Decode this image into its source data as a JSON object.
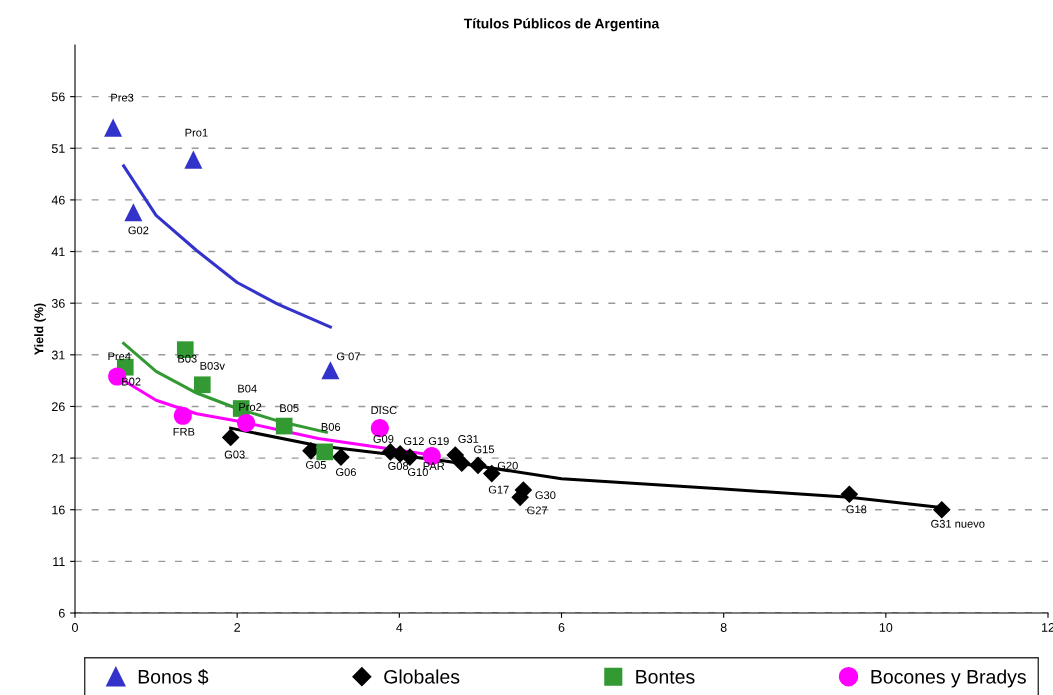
{
  "chart_data": {
    "type": "scatter",
    "title": "Títulos Públicos de Argentina",
    "ylabel": "Yield (%)",
    "xlim": [
      0,
      12
    ],
    "xticks": [
      0,
      2,
      4,
      6,
      8,
      10,
      12
    ],
    "ylim": [
      6,
      61
    ],
    "yticks": [
      6,
      11,
      16,
      21,
      26,
      31,
      36,
      41,
      46,
      51,
      56
    ],
    "grid": "y",
    "legend": "bottom",
    "series": [
      {
        "name": "Bonos $",
        "color": "#3333cc",
        "marker": "triangle",
        "x": [
          0.47,
          1.46,
          0.72,
          3.15
        ],
        "values": [
          53.0,
          49.9,
          44.8,
          29.5
        ]
      },
      {
        "name": "Globales",
        "color": "#000000",
        "marker": "diamond",
        "x": [
          1.92,
          2.91,
          3.28,
          3.89,
          4.01,
          4.13,
          4.69,
          4.77,
          4.97,
          5.14,
          5.53,
          5.49,
          9.55,
          10.69
        ],
        "values": [
          23.0,
          21.7,
          21.1,
          21.6,
          21.4,
          21.1,
          21.3,
          20.5,
          20.3,
          19.5,
          17.9,
          17.2,
          17.5,
          16.0
        ]
      },
      {
        "name": "Bontes",
        "color": "#339933",
        "marker": "square",
        "x": [
          0.62,
          1.36,
          1.57,
          2.05,
          2.58,
          3.08
        ],
        "values": [
          29.8,
          31.5,
          28.1,
          25.8,
          24.1,
          21.6
        ]
      },
      {
        "name": "Bocones y Bradys",
        "color": "#ff00ff",
        "marker": "circle",
        "x": [
          0.52,
          1.33,
          2.11,
          3.76,
          4.4
        ],
        "values": [
          28.9,
          25.1,
          24.4,
          23.9,
          21.2
        ]
      },
      {
        "type": "line",
        "color": "#3333cc",
        "x": [
          0.6,
          1.0,
          1.5,
          2.0,
          2.5,
          3.15
        ],
        "values": [
          49.3,
          44.5,
          41.1,
          38.0,
          35.9,
          33.7
        ]
      },
      {
        "type": "line",
        "color": "#339933",
        "x": [
          0.6,
          1.0,
          1.5,
          2.0,
          2.5,
          3.1
        ],
        "values": [
          32.1,
          29.4,
          27.3,
          25.8,
          24.6,
          23.5
        ]
      },
      {
        "type": "line",
        "color": "#ff00ff",
        "x": [
          0.52,
          1.0,
          1.5,
          2.0,
          3.0,
          4.4
        ],
        "values": [
          28.9,
          26.6,
          25.3,
          24.6,
          22.9,
          21.3
        ]
      },
      {
        "type": "line",
        "color": "#000000",
        "x": [
          1.92,
          3.0,
          4.5,
          6.0,
          8.0,
          9.55,
          10.69
        ],
        "values": [
          23.9,
          22.2,
          20.8,
          19.0,
          18.0,
          17.2,
          16.2
        ]
      }
    ],
    "annotations": [
      {
        "text": "Pre3",
        "x": 0.47,
        "y": 53.0
      },
      {
        "text": "Pro1",
        "x": 1.46,
        "y": 49.9
      },
      {
        "text": "G02",
        "x": 0.72,
        "y": 44.8
      },
      {
        "text": "G 07",
        "x": 3.15,
        "y": 29.5
      },
      {
        "text": "Pre4",
        "x": 0.62,
        "y": 29.8
      },
      {
        "text": "B02",
        "x": 0.52,
        "y": 28.9
      },
      {
        "text": "B03",
        "x": 1.36,
        "y": 31.5
      },
      {
        "text": "B03v",
        "x": 1.57,
        "y": 28.1
      },
      {
        "text": "B04",
        "x": 2.05,
        "y": 25.8
      },
      {
        "text": "Pro2",
        "x": 2.11,
        "y": 24.4
      },
      {
        "text": "B05",
        "x": 2.58,
        "y": 24.1
      },
      {
        "text": "B06",
        "x": 3.08,
        "y": 21.6
      },
      {
        "text": "FRB",
        "x": 1.33,
        "y": 25.1
      },
      {
        "text": "DISC",
        "x": 3.76,
        "y": 23.9
      },
      {
        "text": "G03",
        "x": 1.92,
        "y": 23.0
      },
      {
        "text": "G05",
        "x": 2.91,
        "y": 21.7
      },
      {
        "text": "G06",
        "x": 3.28,
        "y": 21.1
      },
      {
        "text": "G09",
        "x": 3.89,
        "y": 21.6
      },
      {
        "text": "G12",
        "x": 4.13,
        "y": 21.1
      },
      {
        "text": "G19",
        "x": 4.4,
        "y": 21.2
      },
      {
        "text": "G08",
        "x": 4.01,
        "y": 21.4
      },
      {
        "text": "G10",
        "x": 4.13,
        "y": 21.1
      },
      {
        "text": "PAR",
        "x": 4.4,
        "y": 21.2
      },
      {
        "text": "G31",
        "x": 4.69,
        "y": 21.3
      },
      {
        "text": "G15",
        "x": 4.97,
        "y": 20.3
      },
      {
        "text": "G20",
        "x": 5.14,
        "y": 19.5
      },
      {
        "text": "G17",
        "x": 5.14,
        "y": 19.5
      },
      {
        "text": "G30",
        "x": 5.53,
        "y": 17.9
      },
      {
        "text": "G27",
        "x": 5.49,
        "y": 17.2
      },
      {
        "text": "G18",
        "x": 9.55,
        "y": 17.5
      },
      {
        "text": "G31 nuevo",
        "x": 10.69,
        "y": 16.0
      }
    ]
  }
}
